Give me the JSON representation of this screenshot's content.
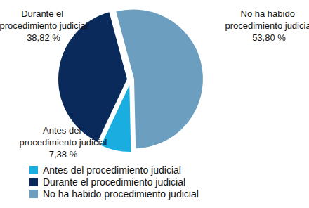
{
  "chart_data": {
    "type": "pie",
    "categories": [
      "Antes del procedimiento judicial",
      "Durante el procedimiento judicial",
      "No ha habido procedimiento judicial"
    ],
    "values": [
      7.38,
      38.82,
      53.8
    ],
    "value_labels": [
      "7,38 %",
      "38,82 %",
      "53,80 %"
    ],
    "colors": [
      "#1aaee0",
      "#0b2a5c",
      "#6b9ebf"
    ],
    "data_labels": true,
    "legend": "bottom left"
  }
}
